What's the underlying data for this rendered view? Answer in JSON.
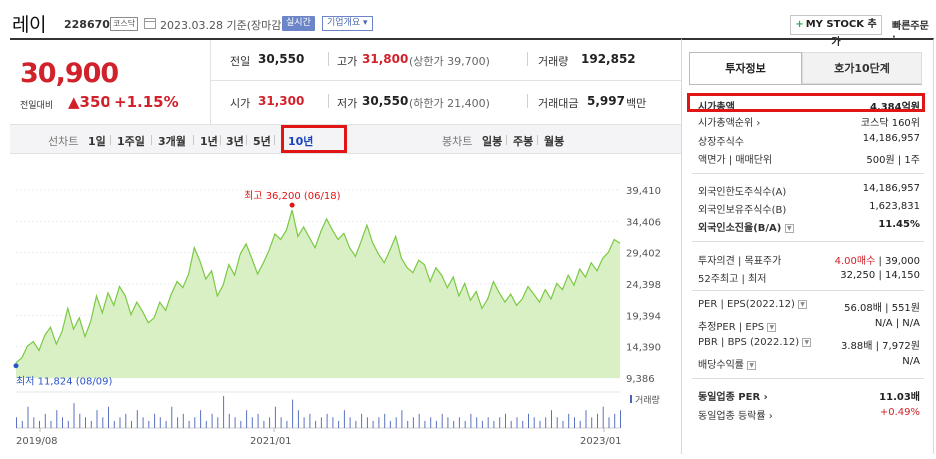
{
  "header": {
    "name": "레이",
    "code": "228670",
    "market": "코스닥",
    "date": "2023.03.28  기준(장마감)",
    "realtime": "실시간",
    "company": "기업개요 ▾",
    "mystock": "MY STOCK 추가",
    "mystock_plus": "+",
    "quick_order": "빠른주문 ·"
  },
  "price": {
    "current": "30,900",
    "diff_label": "전일대비",
    "diff": "▲350",
    "pct": "+1.15%"
  },
  "quote": {
    "prev_label": "전일",
    "prev": "30,550",
    "open_label": "시가",
    "open": "31,300",
    "high_label": "고가",
    "high": "31,800",
    "high_sub": "(상한가 39,700)",
    "low_label": "저가",
    "low": "30,550",
    "low_sub": "(하한가 21,400)",
    "volume_label": "거래량",
    "volume": "192,852",
    "amount_label": "거래대금",
    "amount": "5,997",
    "amount_unit": "백만"
  },
  "periods": {
    "line_label": "선차트",
    "line_items": [
      "1일",
      "1주일",
      "3개월",
      "1년",
      "3년",
      "5년",
      "10년"
    ],
    "candle_label": "봉차트",
    "candle_items": [
      "일봉",
      "주봉",
      "월봉"
    ],
    "active": "10년"
  },
  "chart_data": {
    "type": "area",
    "y_ticks": [
      "39,410",
      "34,406",
      "29,402",
      "24,398",
      "19,394",
      "14,390",
      "9,386"
    ],
    "ylim": [
      9386,
      39410
    ],
    "x_ticks": [
      "2019/08",
      "2021/01",
      "2023/01"
    ],
    "max_label": "최고 36,200 (06/18)",
    "min_label": "최저 11,824 (08/09)",
    "volume_label": "거래량",
    "series": [
      {
        "values": [
          11824,
          12600,
          14500,
          15200,
          13800,
          16200,
          17500,
          14800,
          16800,
          20500,
          17200,
          19000,
          16000,
          18500,
          22500,
          19800,
          23000,
          21000,
          24000,
          22500,
          19500,
          21500,
          20000,
          18200,
          19000,
          21500,
          20200,
          22800,
          24800,
          23800,
          26000,
          30200,
          28000,
          25200,
          26500,
          22500,
          24200,
          27500,
          25800,
          29200,
          30800,
          28500,
          26000,
          27800,
          29800,
          32400,
          31500,
          33000,
          36200,
          32000,
          33500,
          31800,
          30200,
          32800,
          34800,
          33000,
          31500,
          32500,
          30200,
          28800,
          31200,
          33800,
          31000,
          29200,
          27800,
          29800,
          32000,
          28500,
          27000,
          26200,
          28200,
          27500,
          24800,
          27000,
          25800,
          23800,
          25500,
          22500,
          24500,
          21800,
          23200,
          20500,
          22000,
          24800,
          23000,
          21500,
          22800,
          21000,
          22000,
          24000,
          22800,
          21500,
          23500,
          22000,
          24500,
          23500,
          25800,
          24200,
          26800,
          25500,
          27800,
          26500,
          28500,
          29500,
          31500,
          30900
        ]
      }
    ],
    "volume": [
      3,
      2,
      6,
      3,
      2,
      4,
      2,
      5,
      3,
      2,
      7,
      4,
      3,
      2,
      5,
      3,
      6,
      2,
      3,
      4,
      2,
      5,
      3,
      2,
      4,
      3,
      2,
      6,
      3,
      4,
      2,
      3,
      5,
      2,
      4,
      3,
      9,
      4,
      3,
      2,
      5,
      3,
      4,
      2,
      3,
      6,
      3,
      2,
      8,
      5,
      3,
      4,
      2,
      3,
      4,
      3,
      2,
      5,
      3,
      2,
      4,
      3,
      2,
      3,
      4,
      2,
      3,
      5,
      2,
      3,
      4,
      2,
      3,
      2,
      4,
      3,
      2,
      3,
      2,
      4,
      3,
      2,
      3,
      2,
      3,
      4,
      2,
      3,
      2,
      4,
      3,
      2,
      3,
      5,
      3,
      2,
      4,
      3,
      2,
      5,
      3,
      4,
      6,
      3,
      4,
      5
    ],
    "line_color": "#7ac943",
    "fill_color": "#d8f0c4",
    "grid": true
  },
  "info": {
    "tab_active": "투자정보",
    "tab_other": "호가10단계",
    "rows1": [
      {
        "k": "시가총액",
        "v": "4,384억원",
        "bold": true
      },
      {
        "k": "시가총액순위 ›",
        "v": "코스닥 160위"
      },
      {
        "k": "상장주식수",
        "v": "14,186,957"
      },
      {
        "k": "액면가 | 매매단위",
        "v": "500원 | 1주"
      }
    ],
    "rows2": [
      {
        "k": "외국인한도주식수(A)",
        "v": "14,186,957"
      },
      {
        "k": "외국인보유주식수(B)",
        "v": "1,623,831"
      },
      {
        "k": "외국인소진율(B/A)",
        "v": "11.45%",
        "bold": true,
        "icon": true
      }
    ],
    "rows3": [
      {
        "k": "투자의견 | 목표주가",
        "v_red": "4.00매수",
        "v": " | 39,000"
      },
      {
        "k": "52주최고 | 최저",
        "v": "32,250 | 14,150"
      }
    ],
    "rows4": [
      {
        "k": "PER | EPS(2022.12)",
        "v": "56.08배 | 551원",
        "icon": true
      },
      {
        "k": "추정PER | EPS",
        "v": "N/A | N/A",
        "icon": true
      },
      {
        "k": "PBR | BPS (2022.12)",
        "v": "3.88배 | 7,972원",
        "icon": true
      },
      {
        "k": "배당수익률",
        "v": "N/A",
        "icon": true
      }
    ],
    "rows5": [
      {
        "k": "동일업종 PER ›",
        "v": "11.03배",
        "bold": true
      },
      {
        "k": "동일업종 등락률 ›",
        "v": "+0.49%",
        "red": true
      }
    ],
    "icon_glyph": "▼"
  }
}
